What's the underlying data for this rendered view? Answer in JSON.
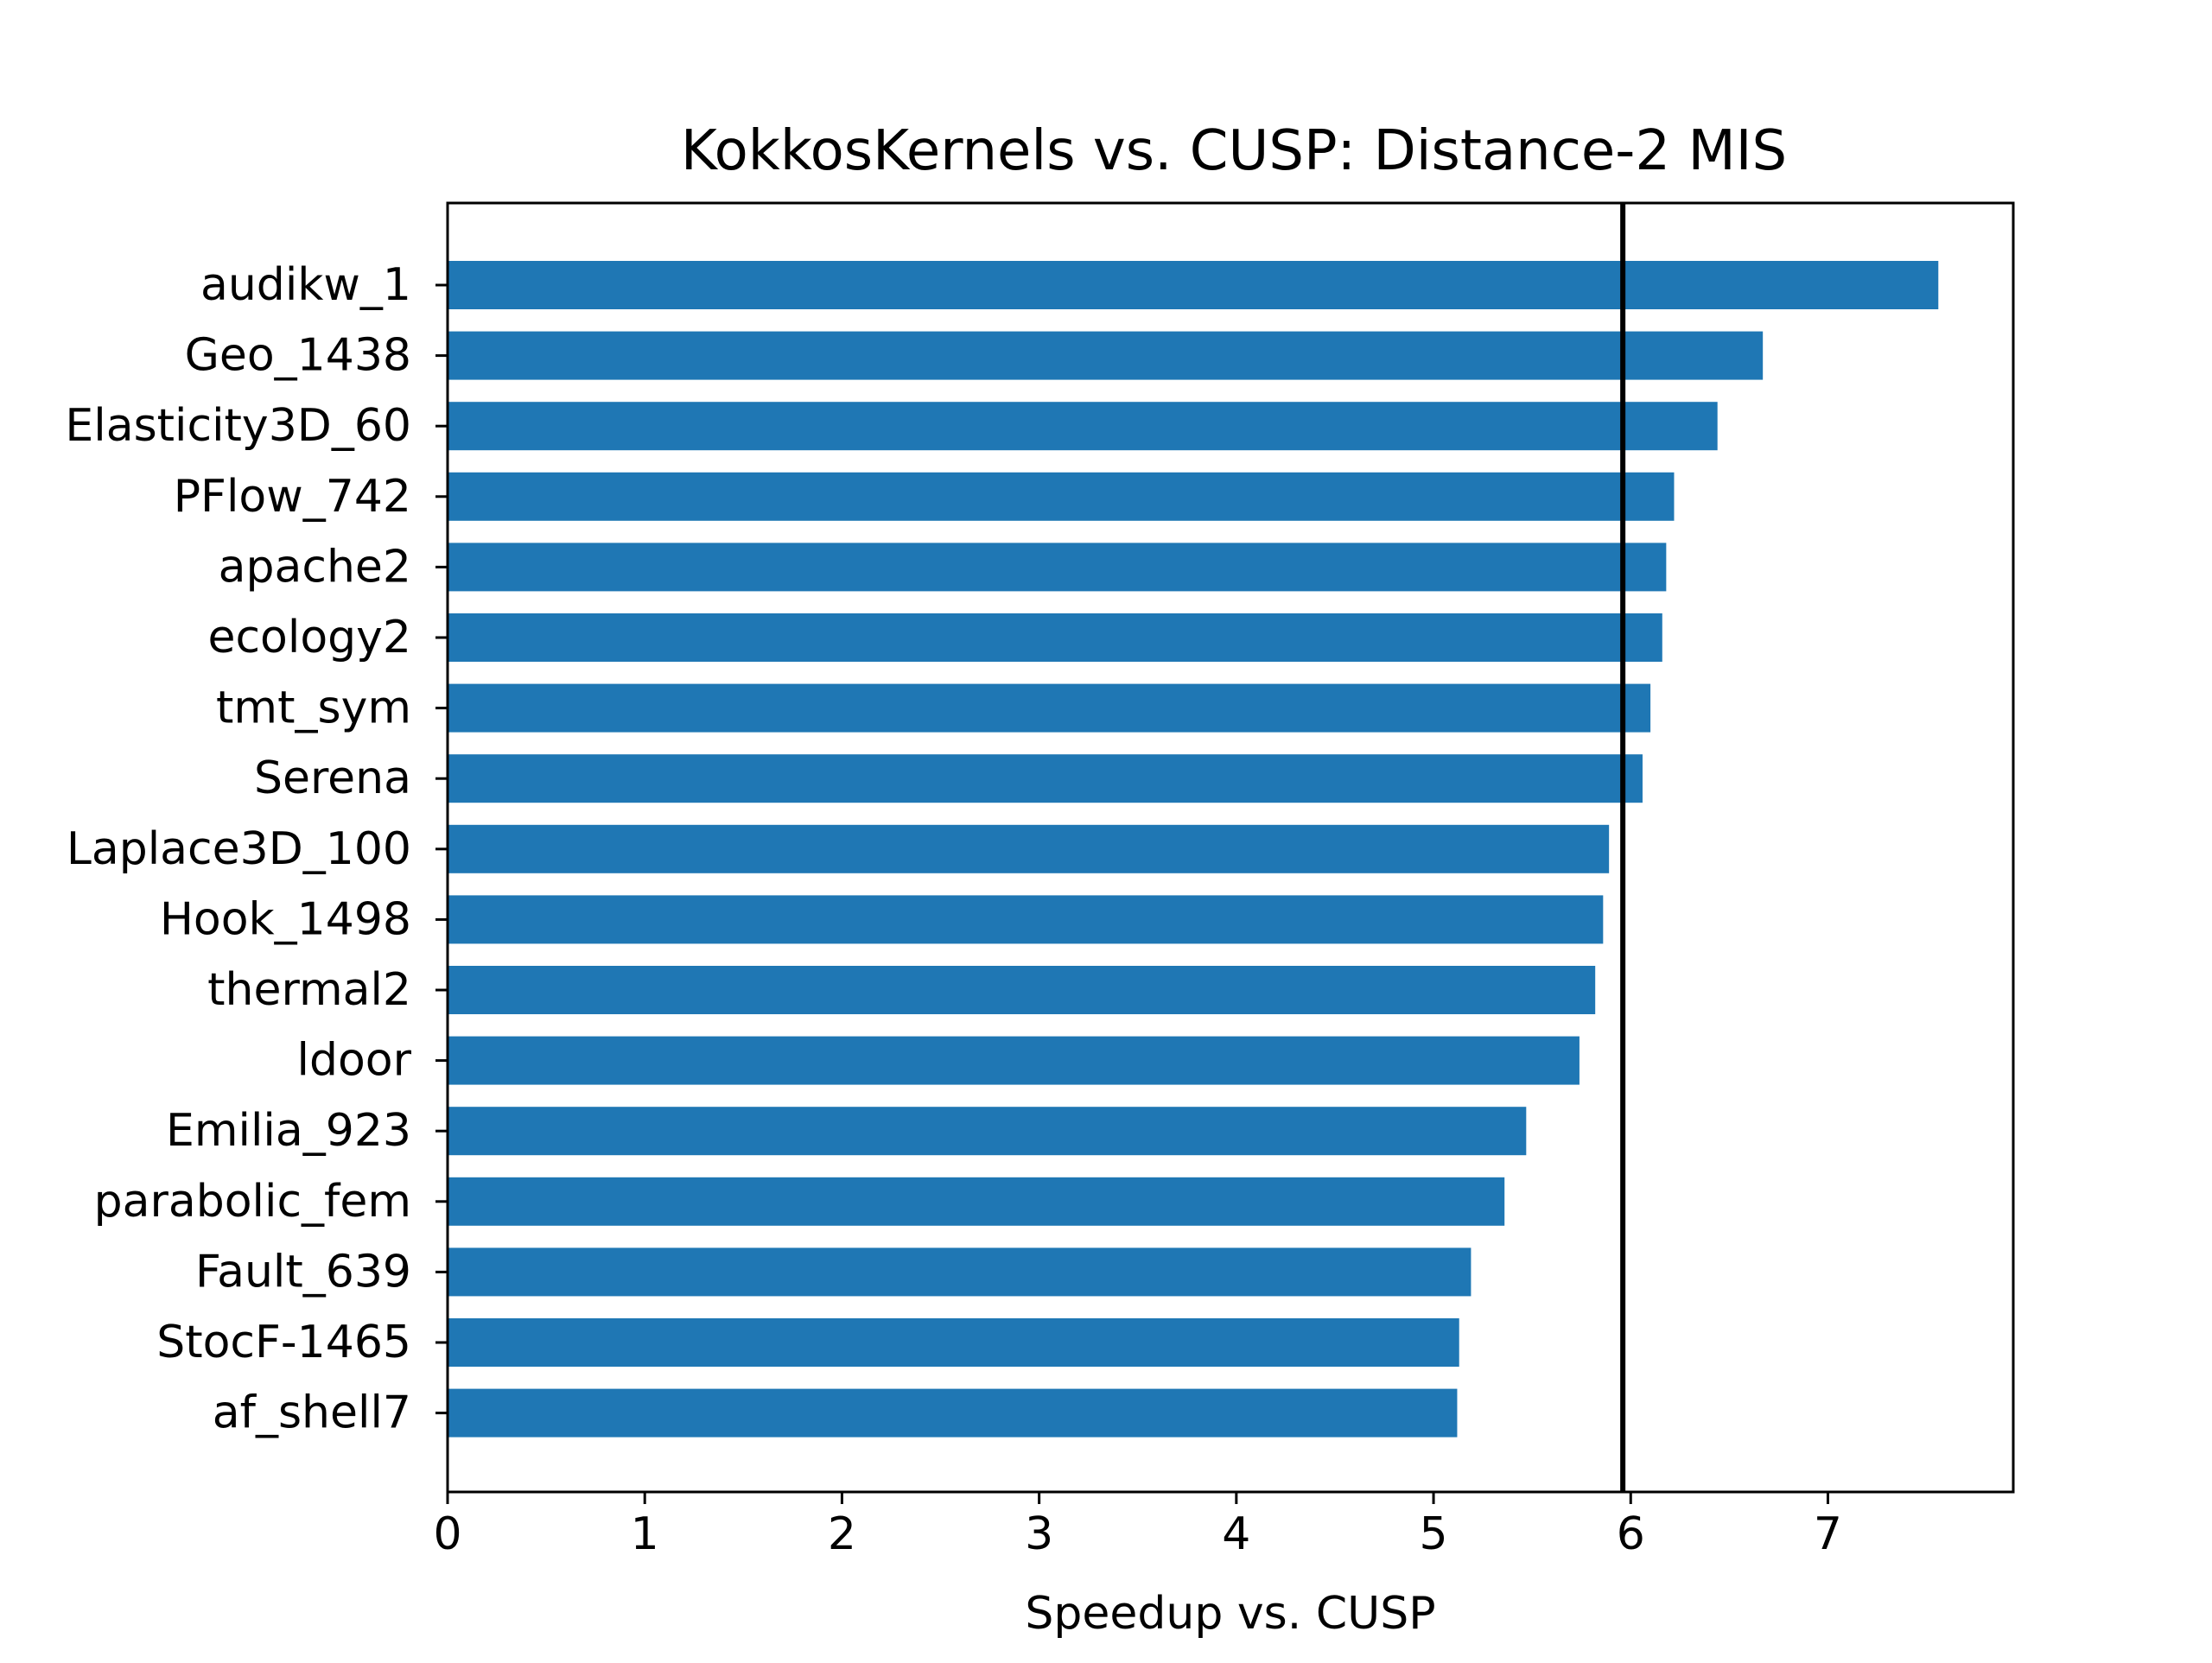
{
  "chart_data": {
    "type": "bar",
    "orientation": "horizontal",
    "title": "KokkosKernels vs. CUSP: Distance-2 MIS",
    "xlabel": "Speedup vs. CUSP",
    "ylabel": "",
    "xlim": [
      0,
      7.94
    ],
    "xticks": [
      "0",
      "1",
      "2",
      "3",
      "4",
      "5",
      "6",
      "7"
    ],
    "categories": [
      "audikw_1",
      "Geo_1438",
      "Elasticity3D_60",
      "PFlow_742",
      "apache2",
      "ecology2",
      "tmt_sym",
      "Serena",
      "Laplace3D_100",
      "Hook_1498",
      "thermal2",
      "ldoor",
      "Emilia_923",
      "parabolic_fem",
      "Fault_639",
      "StocF-1465",
      "af_shell7"
    ],
    "values": [
      7.56,
      6.67,
      6.44,
      6.22,
      6.18,
      6.16,
      6.1,
      6.06,
      5.89,
      5.86,
      5.82,
      5.74,
      5.47,
      5.36,
      5.19,
      5.13,
      5.12
    ],
    "reference_line": {
      "orientation": "vertical",
      "value": 5.96,
      "color": "#000000"
    },
    "bar_color": "#1f77b4",
    "grid": false,
    "legend": "none"
  }
}
